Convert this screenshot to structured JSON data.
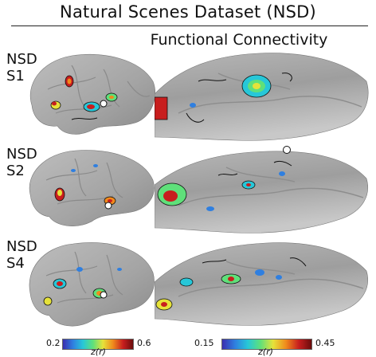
{
  "figure": {
    "title": "Natural Scenes Dataset (NSD)",
    "subtitle": "Functional Connectivity"
  },
  "subjects": [
    {
      "dataset": "NSD",
      "id": "S1"
    },
    {
      "dataset": "NSD",
      "id": "S2"
    },
    {
      "dataset": "NSD",
      "id": "S4"
    }
  ],
  "colorbars": [
    {
      "min": "0.2",
      "max": "0.6",
      "label": "z(r)"
    },
    {
      "min": "0.15",
      "max": "0.45",
      "label": "z(r)"
    }
  ],
  "colormap": [
    "#3b2fb0",
    "#2f7fe0",
    "#27c7d8",
    "#5fe07a",
    "#e6e23a",
    "#f08a1c",
    "#c81e1e",
    "#6a0c0c"
  ],
  "surface_color": "#a9a9a9"
}
